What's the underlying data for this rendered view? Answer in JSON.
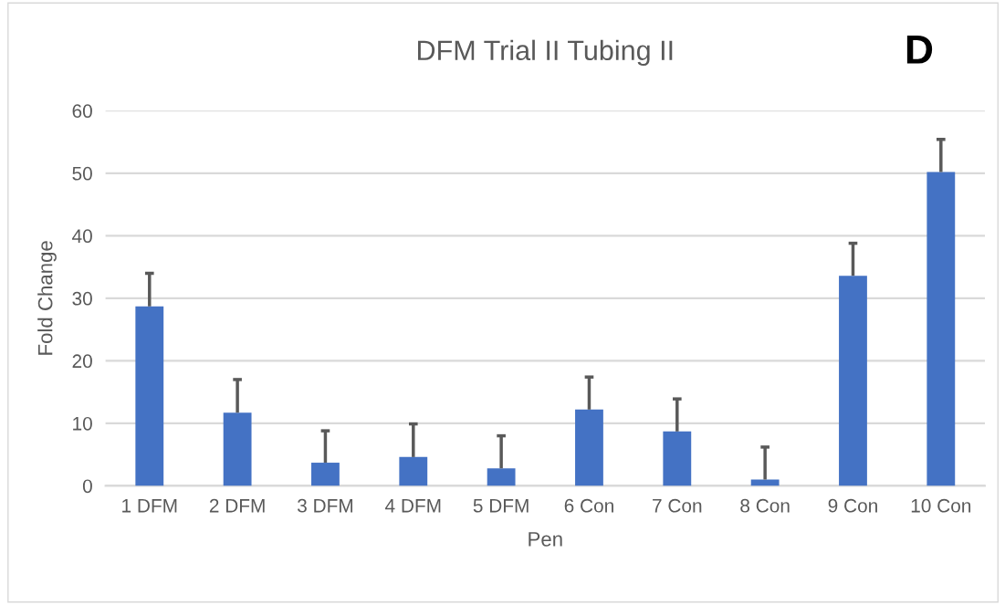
{
  "chart_data": {
    "type": "bar",
    "title": "DFM Trial II Tubing II",
    "xlabel": "Pen",
    "ylabel": "Fold Change",
    "categories": [
      "1 DFM",
      "2 DFM",
      "3 DFM",
      "4 DFM",
      "5 DFM",
      "6 Con",
      "7 Con",
      "8 Con",
      "9 Con",
      "10 Con"
    ],
    "values": [
      28.7,
      11.7,
      3.7,
      4.6,
      2.8,
      12.2,
      8.7,
      1.0,
      33.6,
      50.2
    ],
    "errors": [
      [
        28.7,
        34.0
      ],
      [
        11.7,
        17.0
      ],
      [
        3.7,
        8.8
      ],
      [
        4.6,
        9.9
      ],
      [
        2.8,
        8.0
      ],
      [
        12.2,
        17.4
      ],
      [
        8.7,
        13.9
      ],
      [
        1.0,
        6.2
      ],
      [
        33.6,
        38.8
      ],
      [
        50.2,
        55.4
      ]
    ],
    "color": "#4472c4",
    "ylim": [
      0,
      60
    ],
    "yticks": [
      0,
      10,
      20,
      30,
      40,
      50,
      60
    ],
    "grid": "y",
    "annotations": [
      "D"
    ]
  }
}
